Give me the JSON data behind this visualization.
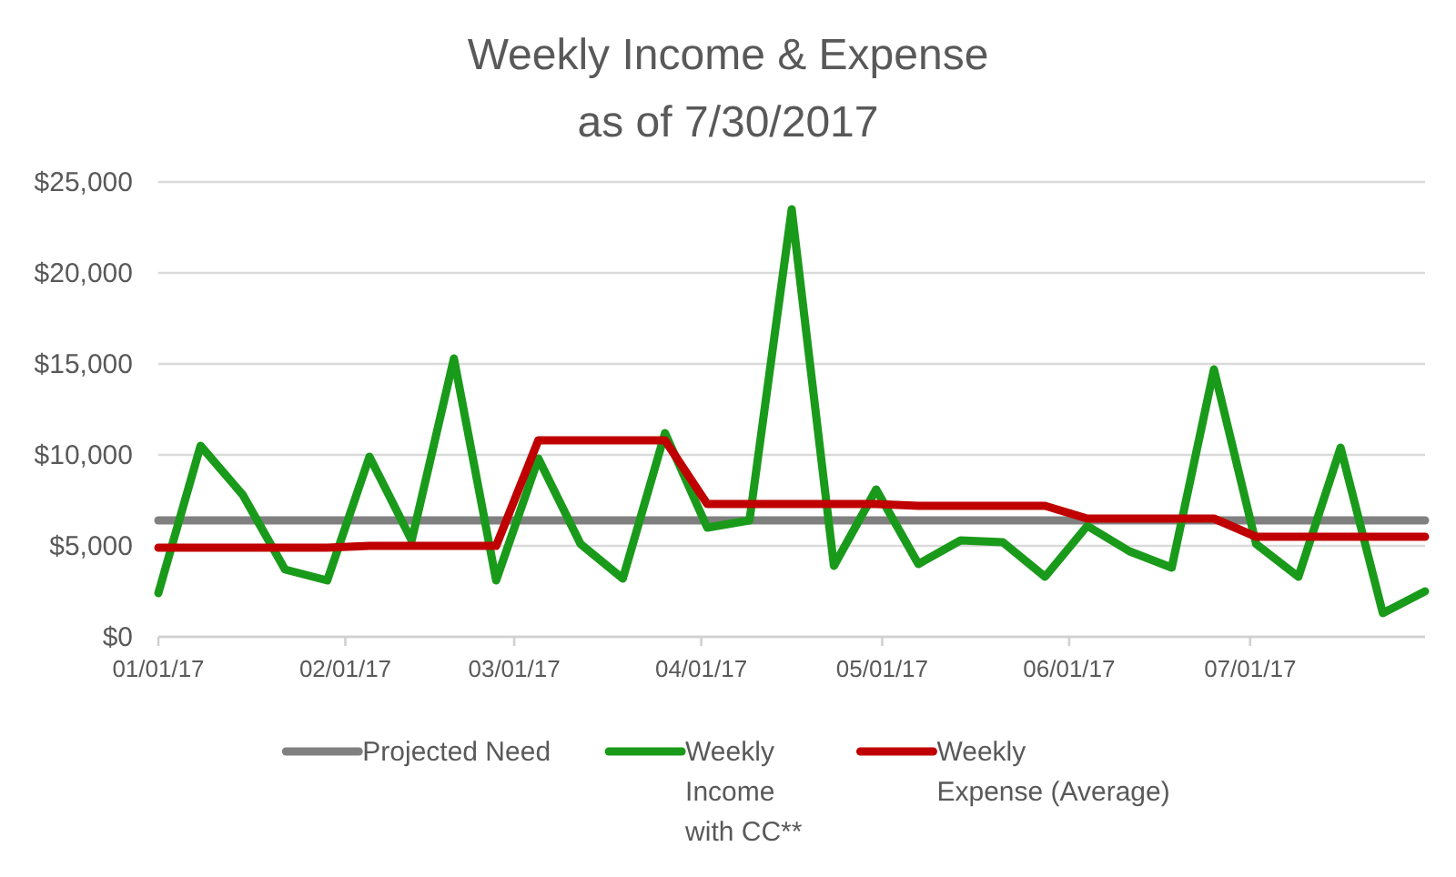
{
  "chart_data": {
    "type": "line",
    "title": "Weekly Income & Expense\nas of 7/30/2017",
    "x": [
      "2017-01-01",
      "2017-01-08",
      "2017-01-15",
      "2017-01-22",
      "2017-01-29",
      "2017-02-05",
      "2017-02-12",
      "2017-02-19",
      "2017-02-26",
      "2017-03-05",
      "2017-03-12",
      "2017-03-19",
      "2017-03-26",
      "2017-04-02",
      "2017-04-09",
      "2017-04-16",
      "2017-04-23",
      "2017-04-30",
      "2017-05-07",
      "2017-05-14",
      "2017-05-21",
      "2017-05-28",
      "2017-06-04",
      "2017-06-11",
      "2017-06-18",
      "2017-06-25",
      "2017-07-02",
      "2017-07-09",
      "2017-07-16",
      "2017-07-23",
      "2017-07-30"
    ],
    "series": [
      {
        "name": "Projected Need",
        "color": "#808080",
        "values": [
          6400,
          6400,
          6400,
          6400,
          6400,
          6400,
          6400,
          6400,
          6400,
          6400,
          6400,
          6400,
          6400,
          6400,
          6400,
          6400,
          6400,
          6400,
          6400,
          6400,
          6400,
          6400,
          6400,
          6400,
          6400,
          6400,
          6400,
          6400,
          6400,
          6400,
          6400
        ]
      },
      {
        "name": "Weekly Income with CC**",
        "color": "#1a9a1a",
        "values": [
          2400,
          10500,
          7800,
          3700,
          3100,
          9900,
          5300,
          15300,
          3100,
          9800,
          5100,
          3200,
          11200,
          6000,
          6400,
          23500,
          3900,
          8100,
          4000,
          5300,
          5200,
          3300,
          6100,
          4700,
          3800,
          14700,
          5100,
          3300,
          10400,
          1300,
          2500
        ]
      },
      {
        "name": "Weekly Expense (Average)",
        "color": "#c00000",
        "values": [
          4900,
          4900,
          4900,
          4900,
          4900,
          5000,
          5000,
          5000,
          5000,
          10800,
          10800,
          10800,
          10800,
          7300,
          7300,
          7300,
          7300,
          7300,
          7200,
          7200,
          7200,
          7200,
          6500,
          6500,
          6500,
          6500,
          5500,
          5500,
          5500,
          5500,
          5500
        ]
      }
    ],
    "xlim": [
      "2017-01-01",
      "2017-07-30"
    ],
    "xticks": [
      {
        "value": "2017-01-01",
        "label": "01/01/17"
      },
      {
        "value": "2017-02-01",
        "label": "02/01/17"
      },
      {
        "value": "2017-03-01",
        "label": "03/01/17"
      },
      {
        "value": "2017-04-01",
        "label": "04/01/17"
      },
      {
        "value": "2017-05-01",
        "label": "05/01/17"
      },
      {
        "value": "2017-06-01",
        "label": "06/01/17"
      },
      {
        "value": "2017-07-01",
        "label": "07/01/17"
      }
    ],
    "ylim": [
      0,
      25000
    ],
    "yticks": [
      {
        "value": 0,
        "label": "$0"
      },
      {
        "value": 5000,
        "label": "$5,000"
      },
      {
        "value": 10000,
        "label": "$10,000"
      },
      {
        "value": 15000,
        "label": "$15,000"
      },
      {
        "value": 20000,
        "label": "$20,000"
      },
      {
        "value": 25000,
        "label": "$25,000"
      }
    ],
    "grid": "y",
    "legend": "bottom"
  }
}
